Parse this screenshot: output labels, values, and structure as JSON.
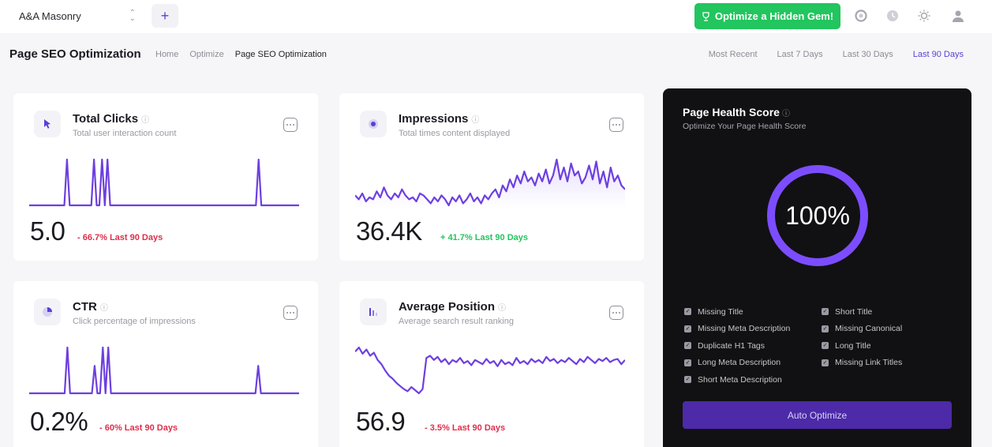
{
  "topbar": {
    "site_name": "A&A Masonry",
    "add_label": "+",
    "gem_button_label": "Optimize a Hidden Gem!",
    "icons": [
      "trophy-icon",
      "integrations-icon",
      "history-icon",
      "theme-icon",
      "user-icon"
    ]
  },
  "header": {
    "title": "Page SEO Optimization",
    "breadcrumbs": [
      "Home",
      "Optimize",
      "Page SEO Optimization"
    ],
    "ranges": [
      "Most Recent",
      "Last 7 Days",
      "Last 30 Days",
      "Last 90 Days"
    ],
    "active_range": "Last 90 Days"
  },
  "cards": {
    "clicks": {
      "title": "Total Clicks",
      "info": "ⓘ",
      "subtitle": "Total user interaction count",
      "value": "5.0",
      "delta": "- 66.7% Last 90 Days",
      "icon": "cursor-icon",
      "series": [
        0,
        0,
        0,
        0,
        0,
        0,
        0,
        0,
        0,
        0,
        0,
        0,
        0,
        0,
        1,
        0,
        0,
        0,
        0,
        0,
        0,
        0,
        0,
        0,
        1,
        0,
        0,
        1,
        0,
        1,
        0,
        0,
        0,
        0,
        0,
        0,
        0,
        0,
        0,
        0,
        0,
        0,
        0,
        0,
        0,
        0,
        0,
        0,
        0,
        0,
        0,
        0,
        0,
        0,
        0,
        0,
        0,
        0,
        0,
        0,
        0,
        0,
        0,
        0,
        0,
        0,
        0,
        0,
        0,
        0,
        0,
        0,
        0,
        0,
        0,
        0,
        0,
        0,
        0,
        0,
        0,
        0,
        0,
        0,
        0,
        1,
        0,
        0,
        0,
        0,
        0,
        0,
        0,
        0,
        0,
        0,
        0,
        0,
        0,
        0,
        0
      ]
    },
    "impressions": {
      "title": "Impressions",
      "info": "ⓘ",
      "subtitle": "Total times content displayed",
      "value": "36.4K",
      "delta": "+ 41.7% Last 90 Days",
      "icon": "eye-icon",
      "series": [
        8,
        6,
        9,
        5,
        7,
        6,
        10,
        7,
        12,
        8,
        6,
        9,
        7,
        11,
        8,
        6,
        7,
        5,
        9,
        8,
        6,
        4,
        7,
        5,
        8,
        6,
        3,
        7,
        5,
        8,
        4,
        6,
        9,
        5,
        7,
        4,
        8,
        6,
        9,
        11,
        7,
        13,
        10,
        16,
        12,
        18,
        14,
        20,
        15,
        17,
        13,
        19,
        15,
        21,
        14,
        18,
        26,
        16,
        22,
        15,
        24,
        18,
        20,
        14,
        17,
        23,
        16,
        25,
        14,
        20,
        12,
        22,
        15,
        18,
        13,
        11
      ]
    },
    "ctr": {
      "title": "CTR",
      "info": "ⓘ",
      "subtitle": "Click percentage of impressions",
      "value": "0.2%",
      "delta": "- 60% Last 90 Days",
      "icon": "pie-icon",
      "series": [
        0,
        0,
        0,
        0,
        0,
        0,
        0,
        0,
        0,
        0,
        0,
        0,
        0,
        0,
        1,
        0,
        0,
        0,
        0,
        0,
        0,
        0,
        0,
        0,
        0.6,
        0,
        0,
        1,
        0,
        1,
        0,
        0,
        0,
        0,
        0,
        0,
        0,
        0,
        0,
        0,
        0,
        0,
        0,
        0,
        0,
        0,
        0,
        0,
        0,
        0,
        0,
        0,
        0,
        0,
        0,
        0,
        0,
        0,
        0,
        0,
        0,
        0,
        0,
        0,
        0,
        0,
        0,
        0,
        0,
        0,
        0,
        0,
        0,
        0,
        0,
        0,
        0,
        0,
        0,
        0,
        0,
        0,
        0,
        0,
        0.6,
        0,
        0,
        0,
        0,
        0,
        0,
        0,
        0,
        0,
        0,
        0,
        0,
        0,
        0,
        0
      ]
    },
    "position": {
      "title": "Average Position",
      "info": "ⓘ",
      "subtitle": "Average search result ranking",
      "value": "56.9",
      "delta": "- 3.5% Last 90 Days",
      "icon": "bars-icon",
      "series": [
        48,
        52,
        46,
        50,
        44,
        47,
        40,
        36,
        30,
        25,
        22,
        18,
        15,
        12,
        10,
        14,
        11,
        8,
        12,
        42,
        44,
        40,
        43,
        38,
        41,
        36,
        40,
        38,
        42,
        37,
        39,
        35,
        40,
        38,
        36,
        41,
        37,
        39,
        34,
        40,
        36,
        38,
        35,
        42,
        37,
        39,
        36,
        41,
        38,
        40,
        37,
        43,
        39,
        41,
        37,
        40,
        38,
        42,
        39,
        36,
        41,
        38,
        43,
        40,
        37,
        41,
        39,
        42,
        38,
        40,
        41,
        36,
        40
      ]
    }
  },
  "health": {
    "title": "Page Health Score",
    "info": "ⓘ",
    "subtitle": "Optimize Your Page Health Score",
    "score": "100%",
    "score_value": 100,
    "checks_left": [
      "Missing Title",
      "Missing Meta Description",
      "Duplicate H1 Tags",
      "Long Meta Description",
      "Short Meta Description"
    ],
    "checks_right": [
      "Short Title",
      "Missing Canonical",
      "Long Title",
      "Missing Link Titles"
    ],
    "auto_button_label": "Auto Optimize"
  },
  "colors": {
    "accent": "#5b3fd3",
    "line": "#6d3fe0",
    "green": "#22c55e",
    "red": "#dc2f4b",
    "panel": "#111113"
  }
}
